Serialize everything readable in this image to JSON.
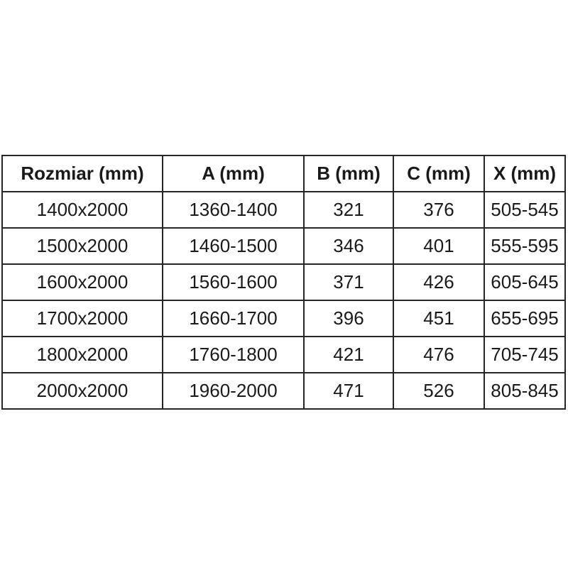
{
  "table": {
    "columns": [
      "Rozmiar (mm)",
      "A (mm)",
      "B (mm)",
      "C (mm)",
      "X (mm)"
    ],
    "rows": [
      [
        "1400x2000",
        "1360-1400",
        "321",
        "376",
        "505-545"
      ],
      [
        "1500x2000",
        "1460-1500",
        "346",
        "401",
        "555-595"
      ],
      [
        "1600x2000",
        "1560-1600",
        "371",
        "426",
        "605-645"
      ],
      [
        "1700x2000",
        "1660-1700",
        "396",
        "451",
        "655-695"
      ],
      [
        "1800x2000",
        "1760-1800",
        "421",
        "476",
        "705-745"
      ],
      [
        "2000x2000",
        "1960-2000",
        "471",
        "526",
        "805-845"
      ]
    ],
    "colors": {
      "border": "#262626",
      "text": "#1a1a1a",
      "background": "#ffffff"
    }
  },
  "chart_data": {
    "type": "table",
    "title": "",
    "columns": [
      "Rozmiar (mm)",
      "A (mm)",
      "B (mm)",
      "C (mm)",
      "X (mm)"
    ],
    "rows": [
      [
        "1400x2000",
        "1360-1400",
        "321",
        "376",
        "505-545"
      ],
      [
        "1500x2000",
        "1460-1500",
        "346",
        "401",
        "555-595"
      ],
      [
        "1600x2000",
        "1560-1600",
        "371",
        "426",
        "605-645"
      ],
      [
        "1700x2000",
        "1660-1700",
        "396",
        "451",
        "655-695"
      ],
      [
        "1800x2000",
        "1760-1800",
        "421",
        "476",
        "705-745"
      ],
      [
        "2000x2000",
        "1960-2000",
        "471",
        "526",
        "805-845"
      ]
    ]
  }
}
